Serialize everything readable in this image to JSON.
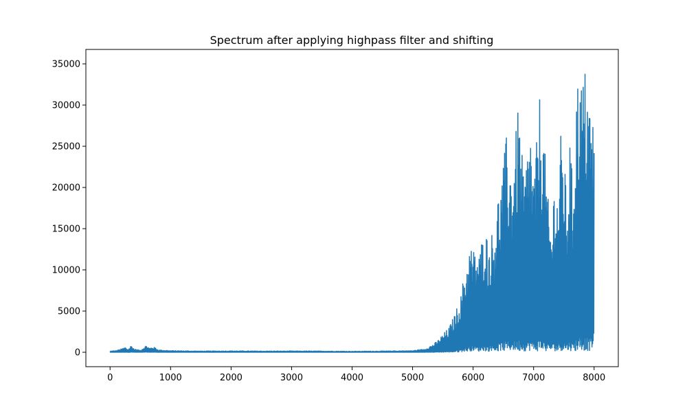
{
  "chart_data": {
    "type": "line",
    "title": "Spectrum after applying highpass filter and shifting",
    "xlabel": "",
    "ylabel": "",
    "xlim": [
      -400,
      8400
    ],
    "ylim": [
      -1750,
      36750
    ],
    "x_ticks": [
      0,
      1000,
      2000,
      3000,
      4000,
      5000,
      6000,
      7000,
      8000
    ],
    "y_ticks": [
      0,
      5000,
      10000,
      15000,
      20000,
      25000,
      30000,
      35000
    ],
    "grid": false,
    "legend": "none",
    "series": [
      {
        "color": "#1f77b4",
        "x_start": 0,
        "x_end": 8000,
        "envelope": {
          "x": [
            0,
            100,
            200,
            250,
            300,
            350,
            400,
            500,
            600,
            650,
            700,
            750,
            800,
            900,
            1000,
            1500,
            2000,
            2500,
            3000,
            3500,
            4000,
            4500,
            5000,
            5200,
            5300,
            5400,
            5500,
            5600,
            5700,
            5800,
            5850,
            5900,
            5950,
            6000,
            6050,
            6100,
            6150,
            6200,
            6250,
            6300,
            6350,
            6400,
            6450,
            6500,
            6550,
            6600,
            6650,
            6700,
            6750,
            6800,
            6850,
            6900,
            6950,
            7000,
            7050,
            7100,
            7150,
            7200,
            7250,
            7300,
            7350,
            7400,
            7450,
            7500,
            7550,
            7600,
            7650,
            7700,
            7750,
            7800,
            7850,
            7900,
            7950,
            8000
          ],
          "upper": [
            150,
            200,
            450,
            600,
            350,
            850,
            400,
            250,
            850,
            500,
            650,
            550,
            300,
            250,
            200,
            150,
            170,
            150,
            160,
            150,
            120,
            150,
            200,
            400,
            800,
            1300,
            2200,
            3000,
            4700,
            7000,
            9500,
            11000,
            13200,
            12500,
            12600,
            12000,
            14000,
            16000,
            13000,
            14500,
            15000,
            19000,
            20000,
            23000,
            26300,
            24000,
            22500,
            26000,
            30700,
            24500,
            21500,
            25000,
            27700,
            21000,
            25500,
            31400,
            28500,
            23100,
            17500,
            15000,
            22500,
            19000,
            26400,
            24700,
            18000,
            26200,
            20000,
            32400,
            34500,
            33000,
            34600,
            33500,
            29000,
            28800
          ],
          "lower": [
            0,
            0,
            0,
            0,
            0,
            0,
            0,
            0,
            0,
            0,
            0,
            0,
            0,
            0,
            0,
            0,
            0,
            0,
            0,
            0,
            0,
            0,
            0,
            0,
            0,
            0,
            0,
            0,
            0,
            50,
            100,
            80,
            150,
            200,
            150,
            100,
            200,
            150,
            100,
            200,
            150,
            100,
            200,
            150,
            100,
            200,
            250,
            150,
            100,
            200,
            150,
            100,
            250,
            150,
            100,
            200,
            150,
            100,
            200,
            250,
            150,
            100,
            200,
            150,
            250,
            200,
            150,
            100,
            250,
            300,
            200,
            150,
            250,
            1000
          ]
        }
      }
    ]
  }
}
